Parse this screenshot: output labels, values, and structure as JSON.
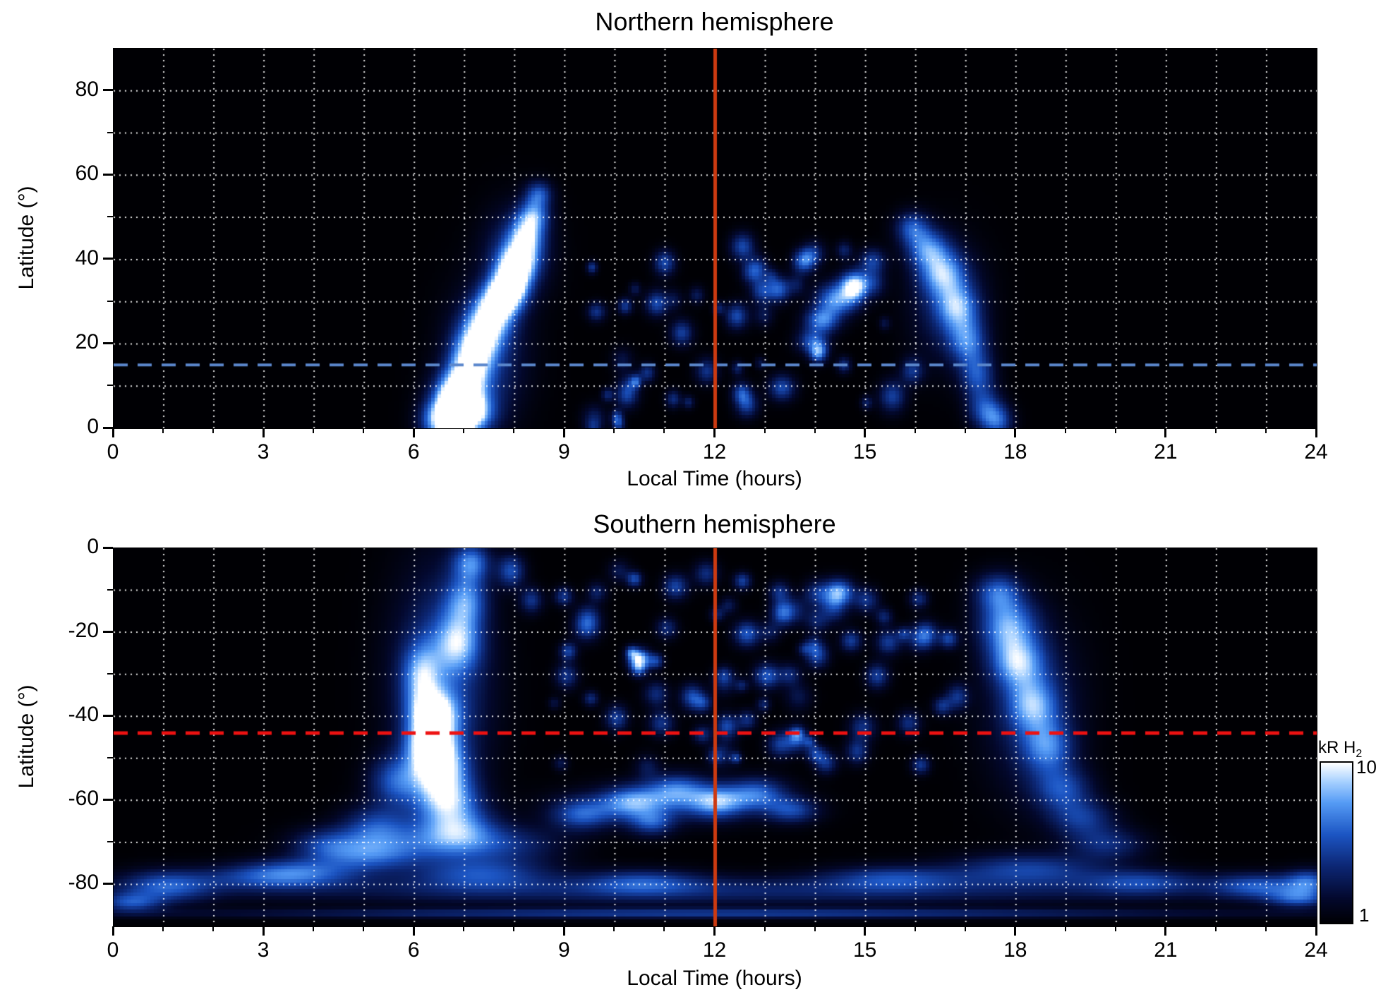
{
  "page": {
    "background": "#ffffff"
  },
  "colorbar": {
    "label": "kR H",
    "label_sub": "2",
    "max_label": "10",
    "min_label": "1",
    "scale": "log",
    "vmin": 1,
    "vmax": 10
  },
  "chart_data": [
    {
      "type": "heatmap",
      "title": "Northern hemisphere",
      "xlabel": "Local Time (hours)",
      "ylabel": "Latitude (°)",
      "xlim": [
        0,
        24
      ],
      "ylim": [
        0,
        90
      ],
      "xticks": [
        0,
        3,
        6,
        9,
        12,
        15,
        18,
        21,
        24
      ],
      "yticks": [
        0,
        20,
        40,
        60,
        80
      ],
      "grid": {
        "x_step": 1,
        "y_step": 10,
        "style": "dotted",
        "color": "#ffffff"
      },
      "value_scale": {
        "type": "log",
        "vmin": 1,
        "vmax": 10,
        "unit": "kR H2"
      },
      "colormap": "black-blue-white",
      "reference_lines": [
        {
          "orientation": "horizontal",
          "value": 15,
          "color": "#5b87cc",
          "dash": [
            20,
            14
          ],
          "width": 4,
          "name": "north-latitude-marker"
        },
        {
          "orientation": "vertical",
          "value": 12,
          "color": "#cc3a11",
          "dash": [],
          "width": 5,
          "name": "noon-line"
        }
      ],
      "features": [
        [
          6.55,
          2,
          0.55,
          6,
          0.85
        ],
        [
          6.8,
          8,
          0.5,
          7,
          0.9
        ],
        [
          7.0,
          4,
          0.6,
          6,
          0.95
        ],
        [
          7.05,
          14,
          0.5,
          7,
          0.7
        ],
        [
          7.2,
          20,
          0.55,
          7,
          0.75
        ],
        [
          7.45,
          26,
          0.55,
          7,
          0.8
        ],
        [
          7.7,
          31,
          0.5,
          6,
          0.95
        ],
        [
          7.9,
          35,
          0.45,
          6,
          1.0
        ],
        [
          8.05,
          40,
          0.5,
          6,
          0.85
        ],
        [
          8.2,
          46,
          0.45,
          6,
          0.7
        ],
        [
          8.35,
          51,
          0.4,
          5,
          0.6
        ],
        [
          8.45,
          56,
          0.35,
          4,
          0.5
        ],
        [
          7.4,
          18,
          1.0,
          20,
          0.38
        ],
        [
          8.0,
          42,
          0.85,
          14,
          0.35
        ],
        [
          6.9,
          6,
          0.8,
          10,
          0.45
        ],
        [
          15.9,
          48,
          0.45,
          5,
          0.5
        ],
        [
          16.2,
          43,
          0.55,
          6,
          0.6
        ],
        [
          16.5,
          37,
          0.6,
          7,
          0.65
        ],
        [
          16.8,
          29,
          0.55,
          7,
          0.6
        ],
        [
          17.0,
          21,
          0.5,
          7,
          0.55
        ],
        [
          17.2,
          13,
          0.45,
          7,
          0.5
        ],
        [
          17.35,
          5,
          0.45,
          6,
          0.48
        ],
        [
          16.6,
          30,
          0.95,
          18,
          0.3
        ],
        [
          14.4,
          31,
          0.55,
          5,
          0.75
        ],
        [
          14.1,
          26,
          0.45,
          4,
          0.65
        ],
        [
          14.75,
          35,
          0.4,
          4,
          0.6
        ],
        [
          13.9,
          21,
          0.4,
          4,
          0.5
        ],
        [
          15.1,
          40,
          0.35,
          4,
          0.45
        ],
        [
          10.8,
          30,
          0.3,
          4,
          0.5
        ],
        [
          11.3,
          23,
          0.3,
          4,
          0.45
        ],
        [
          12.4,
          27,
          0.3,
          4,
          0.5
        ],
        [
          12.9,
          33,
          0.3,
          4,
          0.45
        ],
        [
          13.3,
          10,
          0.35,
          4,
          0.5
        ],
        [
          12.6,
          6,
          0.3,
          4,
          0.45
        ],
        [
          11.8,
          14,
          0.3,
          4,
          0.4
        ],
        [
          9.6,
          28,
          0.25,
          3,
          0.4
        ],
        [
          10.2,
          8,
          0.3,
          4,
          0.4
        ],
        [
          15.5,
          8,
          0.35,
          5,
          0.45
        ],
        [
          15.9,
          14,
          0.3,
          4,
          0.4
        ],
        [
          17.6,
          2,
          0.4,
          5,
          0.5
        ]
      ],
      "speckle": [
        {
          "x0": 9.3,
          "x1": 15.6,
          "lat0": 0,
          "lat1": 44,
          "n": 40,
          "rx": 0.22,
          "ry": 3,
          "vmin": 0.2,
          "vmax": 0.5,
          "seed": 13
        }
      ]
    },
    {
      "type": "heatmap",
      "title": "Southern hemisphere",
      "xlabel": "Local Time (hours)",
      "ylabel": "Latitude (°)",
      "xlim": [
        0,
        24
      ],
      "ylim": [
        -90,
        0
      ],
      "xticks": [
        0,
        3,
        6,
        9,
        12,
        15,
        18,
        21,
        24
      ],
      "yticks": [
        0,
        -20,
        -40,
        -60,
        -80
      ],
      "grid": {
        "x_step": 1,
        "y_step": 10,
        "style": "dotted",
        "color": "#ffffff"
      },
      "value_scale": {
        "type": "log",
        "vmin": 1,
        "vmax": 10,
        "unit": "kR H2"
      },
      "colormap": "black-blue-white",
      "reference_lines": [
        {
          "orientation": "horizontal",
          "value": -44,
          "color": "#ee1111",
          "dash": [
            20,
            14
          ],
          "width": 5,
          "name": "south-latitude-marker"
        },
        {
          "orientation": "vertical",
          "value": 12,
          "color": "#cc3a11",
          "dash": [],
          "width": 5,
          "name": "noon-line"
        }
      ],
      "features": [
        [
          6.5,
          -32,
          1.2,
          34,
          0.5
        ],
        [
          6.3,
          -46,
          0.6,
          7,
          1.0
        ],
        [
          6.35,
          -39,
          0.6,
          7,
          0.85
        ],
        [
          6.45,
          -52,
          0.7,
          7,
          0.8
        ],
        [
          6.6,
          -59,
          0.8,
          7,
          0.7
        ],
        [
          6.8,
          -66,
          1.0,
          7,
          0.6
        ],
        [
          6.85,
          -22,
          0.6,
          9,
          0.6
        ],
        [
          7.0,
          -12,
          0.55,
          8,
          0.55
        ],
        [
          7.1,
          -3,
          0.5,
          6,
          0.6
        ],
        [
          6.1,
          -30,
          0.5,
          10,
          0.55
        ],
        [
          5.6,
          -55,
          0.7,
          8,
          0.5
        ],
        [
          5.2,
          -66,
          0.9,
          7,
          0.45
        ],
        [
          5.0,
          -73,
          1.3,
          5,
          0.4
        ],
        [
          4.2,
          -70,
          0.9,
          5,
          0.35
        ],
        [
          3.6,
          -76,
          1.5,
          4,
          0.35
        ],
        [
          12,
          -81,
          13,
          4.5,
          0.33
        ],
        [
          12,
          -86.5,
          13,
          1.6,
          0.42
        ],
        [
          1.0,
          -80,
          1.2,
          5,
          0.5
        ],
        [
          0.3,
          -84,
          0.8,
          3,
          0.45
        ],
        [
          3.2,
          -78,
          2.0,
          4,
          0.42
        ],
        [
          7.3,
          -77,
          1.8,
          5,
          0.45
        ],
        [
          10.5,
          -79,
          1.5,
          4,
          0.38
        ],
        [
          15.5,
          -78,
          1.8,
          4,
          0.4
        ],
        [
          18.2,
          -76,
          2.0,
          5,
          0.45
        ],
        [
          20.5,
          -79,
          1.5,
          4,
          0.4
        ],
        [
          22.8,
          -80,
          1.2,
          4,
          0.5
        ],
        [
          23.6,
          -83,
          0.8,
          3,
          0.45
        ],
        [
          23.8,
          -79,
          0.6,
          4,
          0.5
        ],
        [
          17.6,
          -10,
          0.6,
          6,
          0.5
        ],
        [
          17.8,
          -18,
          0.75,
          9,
          0.7
        ],
        [
          18.0,
          -27,
          0.7,
          8,
          0.65
        ],
        [
          18.3,
          -37,
          0.65,
          8,
          0.55
        ],
        [
          18.6,
          -47,
          0.65,
          8,
          0.5
        ],
        [
          18.9,
          -57,
          0.75,
          7,
          0.45
        ],
        [
          19.3,
          -64,
          0.85,
          6,
          0.4
        ],
        [
          18.3,
          -38,
          1.2,
          26,
          0.33
        ],
        [
          19.8,
          -70,
          1.0,
          5,
          0.35
        ],
        [
          9.3,
          -63,
          0.8,
          5,
          0.5
        ],
        [
          10.3,
          -60,
          0.8,
          5,
          0.55
        ],
        [
          11.2,
          -57,
          0.8,
          5,
          0.55
        ],
        [
          12.0,
          -60,
          0.7,
          5,
          0.6
        ],
        [
          12.8,
          -58,
          0.8,
          5,
          0.55
        ],
        [
          13.5,
          -62,
          0.7,
          4,
          0.45
        ],
        [
          10.7,
          -65,
          0.6,
          4,
          0.45
        ],
        [
          11.0,
          -60.5,
          2.5,
          6,
          0.3
        ],
        [
          10.45,
          -26,
          0.28,
          3.2,
          0.95
        ],
        [
          12.6,
          -20,
          0.35,
          4,
          0.55
        ],
        [
          13.3,
          -15,
          0.3,
          4,
          0.5
        ],
        [
          13.0,
          -30,
          0.35,
          4,
          0.55
        ],
        [
          14.0,
          -25,
          0.3,
          4,
          0.5
        ],
        [
          14.5,
          -10,
          0.35,
          4,
          0.5
        ],
        [
          15.2,
          -30,
          0.3,
          4,
          0.45
        ],
        [
          11.5,
          -35,
          0.3,
          4,
          0.5
        ],
        [
          12.2,
          -42,
          0.3,
          4,
          0.5
        ],
        [
          13.6,
          -45,
          0.3,
          4,
          0.45
        ],
        [
          14.8,
          -48,
          0.3,
          4,
          0.4
        ],
        [
          10.0,
          -40,
          0.3,
          4,
          0.45
        ],
        [
          9.0,
          -30,
          0.3,
          4,
          0.4
        ],
        [
          16.2,
          -20,
          0.3,
          4,
          0.4
        ],
        [
          16.8,
          -35,
          0.3,
          4,
          0.4
        ],
        [
          7.9,
          -5,
          0.35,
          5,
          0.5
        ],
        [
          8.3,
          -12,
          0.3,
          4,
          0.4
        ],
        [
          6.0,
          -70,
          2.2,
          6,
          0.35
        ],
        [
          7.8,
          -70,
          1.5,
          6,
          0.3
        ]
      ],
      "speckle": [
        {
          "x0": 8.6,
          "x1": 16.8,
          "lat0": -52,
          "lat1": -2,
          "n": 60,
          "rx": 0.25,
          "ry": 3,
          "vmin": 0.2,
          "vmax": 0.5,
          "seed": 21
        }
      ]
    }
  ]
}
